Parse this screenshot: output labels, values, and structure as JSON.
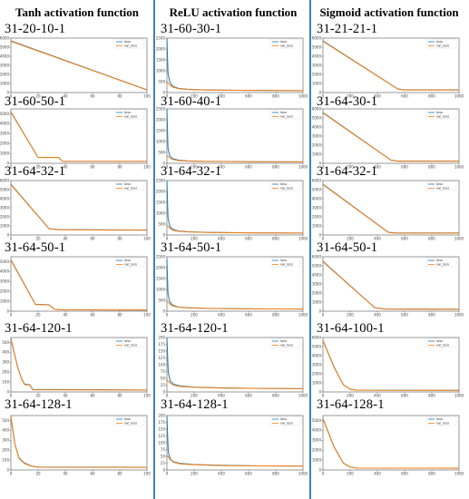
{
  "columns": [
    {
      "header": "Tanh activation function",
      "panels": [
        {
          "label": "31-20-10-1"
        },
        {
          "label": "31-60-50-1"
        },
        {
          "label": "31-64-32-1"
        },
        {
          "label": "31-64-50-1"
        },
        {
          "label": "31-64-120-1"
        },
        {
          "label": "31-64-128-1"
        }
      ]
    },
    {
      "header": "ReLU activation function",
      "panels": [
        {
          "label": "31-60-30-1"
        },
        {
          "label": "31-60-40-1"
        },
        {
          "label": "31-64-32-1"
        },
        {
          "label": "31-64-50-1"
        },
        {
          "label": "31-64-120-1"
        },
        {
          "label": "31-64-128-1"
        }
      ]
    },
    {
      "header": "Sigmoid activation function",
      "panels": [
        {
          "label": "31-21-21-1"
        },
        {
          "label": "31-64-30-1"
        },
        {
          "label": "31-64-32-1"
        },
        {
          "label": "31-64-50-1"
        },
        {
          "label": "31-64-100-1"
        },
        {
          "label": "31-64-128-1"
        }
      ]
    }
  ],
  "colors": {
    "loss": "#1f77b4",
    "val_loss": "#ff7f0e",
    "separator": "#3f7fc8"
  },
  "chart_data": [
    {
      "type": "line",
      "xlim": [
        0,
        100
      ],
      "ylim": [
        0,
        6000
      ],
      "xticks": [
        0,
        20,
        40,
        60,
        80,
        100
      ],
      "yticks": [
        0,
        1000,
        2000,
        3000,
        4000,
        5000,
        6000
      ],
      "legend": "top-right",
      "series": [
        {
          "name": "loss",
          "x": [
            0,
            100
          ],
          "y": [
            5700,
            300
          ]
        },
        {
          "name": "val_loss",
          "x": [
            0,
            100
          ],
          "y": [
            5650,
            280
          ]
        }
      ]
    },
    {
      "type": "line",
      "xlim": [
        0,
        100
      ],
      "ylim": [
        0,
        5500
      ],
      "xticks": [
        0,
        20,
        40,
        60,
        80,
        100
      ],
      "yticks": [
        0,
        1000,
        2000,
        3000,
        4000,
        5000
      ],
      "legend": "top-right",
      "series": [
        {
          "name": "loss",
          "x": [
            0,
            20,
            35,
            38,
            42,
            100
          ],
          "y": [
            5200,
            600,
            600,
            200,
            200,
            200
          ]
        },
        {
          "name": "val_loss",
          "x": [
            0,
            20,
            35,
            38,
            42,
            100
          ],
          "y": [
            5150,
            580,
            580,
            190,
            190,
            190
          ]
        }
      ]
    },
    {
      "type": "line",
      "xlim": [
        0,
        100
      ],
      "ylim": [
        0,
        6000
      ],
      "xticks": [
        0,
        20,
        40,
        60,
        80,
        100
      ],
      "yticks": [
        0,
        1000,
        2000,
        3000,
        4000,
        5000,
        6000
      ],
      "legend": "top-right",
      "series": [
        {
          "name": "loss",
          "x": [
            0,
            28,
            35,
            100
          ],
          "y": [
            5600,
            700,
            600,
            550
          ]
        },
        {
          "name": "val_loss",
          "x": [
            0,
            28,
            35,
            100
          ],
          "y": [
            5550,
            680,
            580,
            520
          ]
        }
      ]
    },
    {
      "type": "line",
      "xlim": [
        0,
        100
      ],
      "ylim": [
        0,
        5500
      ],
      "xticks": [
        0,
        20,
        40,
        60,
        80,
        100
      ],
      "yticks": [
        0,
        1000,
        2000,
        3000,
        4000,
        5000
      ],
      "legend": "top-right",
      "series": [
        {
          "name": "loss",
          "x": [
            0,
            18,
            28,
            32,
            36,
            100
          ],
          "y": [
            5200,
            700,
            650,
            200,
            150,
            120
          ]
        },
        {
          "name": "val_loss",
          "x": [
            0,
            18,
            28,
            32,
            36,
            100
          ],
          "y": [
            5150,
            680,
            630,
            190,
            140,
            110
          ]
        }
      ]
    },
    {
      "type": "line",
      "xlim": [
        0,
        100
      ],
      "ylim": [
        0,
        550
      ],
      "xticks": [
        0,
        20,
        40,
        60,
        80,
        100
      ],
      "yticks": [
        0,
        100,
        200,
        300,
        400,
        500
      ],
      "legend": "top-right",
      "series": [
        {
          "name": "loss",
          "x": [
            0,
            5,
            8,
            10,
            14,
            16,
            100
          ],
          "y": [
            540,
            250,
            130,
            80,
            70,
            25,
            20
          ]
        },
        {
          "name": "val_loss",
          "x": [
            0,
            5,
            8,
            10,
            14,
            16,
            100
          ],
          "y": [
            530,
            245,
            125,
            75,
            68,
            22,
            18
          ]
        }
      ]
    },
    {
      "type": "line",
      "xlim": [
        0,
        100
      ],
      "ylim": [
        0,
        550
      ],
      "xticks": [
        0,
        20,
        40,
        60,
        80,
        100
      ],
      "yticks": [
        0,
        100,
        200,
        300,
        400,
        500
      ],
      "legend": "top-right",
      "series": [
        {
          "name": "loss",
          "x": [
            0,
            3,
            6,
            10,
            15,
            20,
            100
          ],
          "y": [
            540,
            260,
            120,
            70,
            40,
            30,
            28
          ]
        },
        {
          "name": "val_loss",
          "x": [
            0,
            3,
            6,
            10,
            15,
            20,
            100
          ],
          "y": [
            535,
            255,
            115,
            65,
            38,
            28,
            26
          ]
        }
      ]
    },
    {
      "type": "line",
      "xlim": [
        0,
        1000
      ],
      "ylim": [
        0,
        2500
      ],
      "xticks": [
        0,
        200,
        400,
        600,
        800,
        1000
      ],
      "yticks": [
        0,
        500,
        1000,
        1500,
        2000,
        2500
      ],
      "legend": "top-right",
      "series": [
        {
          "name": "loss",
          "x": [
            0,
            8,
            20,
            40,
            80,
            150,
            300,
            600,
            1000
          ],
          "y": [
            2500,
            900,
            500,
            300,
            200,
            150,
            120,
            100,
            90
          ]
        },
        {
          "name": "val_loss",
          "x": [
            0,
            20,
            40,
            80,
            150,
            300,
            600,
            1000
          ],
          "y": [
            500,
            350,
            260,
            180,
            140,
            115,
            100,
            90
          ]
        }
      ]
    },
    {
      "type": "line",
      "xlim": [
        0,
        1000
      ],
      "ylim": [
        0,
        2500
      ],
      "xticks": [
        0,
        200,
        400,
        600,
        800,
        1000
      ],
      "yticks": [
        0,
        500,
        1000,
        1500,
        2000,
        2500
      ],
      "legend": "top-right",
      "series": [
        {
          "name": "loss",
          "x": [
            0,
            8,
            20,
            40,
            80,
            150,
            300,
            600,
            1000
          ],
          "y": [
            2500,
            700,
            350,
            220,
            150,
            110,
            90,
            75,
            70
          ]
        },
        {
          "name": "val_loss",
          "x": [
            0,
            20,
            40,
            80,
            150,
            300,
            600,
            1000
          ],
          "y": [
            350,
            250,
            180,
            130,
            100,
            85,
            72,
            68
          ]
        }
      ]
    },
    {
      "type": "line",
      "xlim": [
        0,
        1000
      ],
      "ylim": [
        0,
        2500
      ],
      "xticks": [
        0,
        200,
        400,
        600,
        800,
        1000
      ],
      "yticks": [
        0,
        500,
        1000,
        1500,
        2000,
        2500
      ],
      "legend": "top-right",
      "series": [
        {
          "name": "loss",
          "x": [
            0,
            8,
            20,
            40,
            80,
            150,
            300,
            600,
            1000
          ],
          "y": [
            2500,
            800,
            420,
            270,
            190,
            150,
            120,
            100,
            90
          ]
        },
        {
          "name": "val_loss",
          "x": [
            0,
            20,
            40,
            80,
            150,
            300,
            600,
            1000
          ],
          "y": [
            450,
            320,
            230,
            170,
            140,
            115,
            100,
            90
          ]
        }
      ]
    },
    {
      "type": "line",
      "xlim": [
        0,
        1000
      ],
      "ylim": [
        0,
        2500
      ],
      "xticks": [
        0,
        200,
        400,
        600,
        800,
        1000
      ],
      "yticks": [
        0,
        500,
        1000,
        1500,
        2000,
        2500
      ],
      "legend": "top-right",
      "series": [
        {
          "name": "loss",
          "x": [
            0,
            8,
            20,
            40,
            80,
            150,
            300,
            600,
            1000
          ],
          "y": [
            2400,
            800,
            450,
            290,
            200,
            160,
            130,
            110,
            100
          ]
        },
        {
          "name": "val_loss",
          "x": [
            0,
            20,
            40,
            80,
            150,
            300,
            600,
            1000
          ],
          "y": [
            480,
            340,
            250,
            190,
            150,
            125,
            108,
            98
          ]
        }
      ]
    },
    {
      "type": "line",
      "xlim": [
        0,
        1000
      ],
      "ylim": [
        0,
        200
      ],
      "xticks": [
        0,
        200,
        400,
        600,
        800,
        1000
      ],
      "yticks": [
        0,
        25,
        50,
        75,
        100,
        125,
        150,
        175,
        200
      ],
      "legend": "top-right",
      "series": [
        {
          "name": "loss",
          "x": [
            0,
            10,
            25,
            50,
            100,
            200,
            400,
            700,
            1000
          ],
          "y": [
            200,
            70,
            40,
            28,
            22,
            18,
            15,
            13,
            12
          ]
        },
        {
          "name": "val_loss",
          "x": [
            0,
            25,
            50,
            100,
            200,
            400,
            700,
            1000
          ],
          "y": [
            45,
            32,
            25,
            20,
            17,
            14,
            13,
            12
          ]
        }
      ]
    },
    {
      "type": "line",
      "xlim": [
        0,
        1000
      ],
      "ylim": [
        0,
        200
      ],
      "xticks": [
        0,
        200,
        400,
        600,
        800,
        1000
      ],
      "yticks": [
        0,
        25,
        50,
        75,
        100,
        125,
        150,
        175,
        200
      ],
      "legend": "top-right",
      "series": [
        {
          "name": "loss",
          "x": [
            0,
            10,
            25,
            50,
            100,
            200,
            400,
            700,
            1000
          ],
          "y": [
            200,
            65,
            40,
            30,
            24,
            20,
            17,
            15,
            14
          ]
        },
        {
          "name": "val_loss",
          "x": [
            0,
            25,
            50,
            100,
            200,
            400,
            700,
            1000
          ],
          "y": [
            55,
            38,
            28,
            22,
            19,
            16,
            15,
            14
          ]
        }
      ]
    },
    {
      "type": "line",
      "xlim": [
        0,
        1000
      ],
      "ylim": [
        0,
        6000
      ],
      "xticks": [
        0,
        200,
        400,
        600,
        800,
        1000
      ],
      "yticks": [
        0,
        1000,
        2000,
        3000,
        4000,
        5000,
        6000
      ],
      "legend": "top-right",
      "series": [
        {
          "name": "loss",
          "x": [
            0,
            550,
            600,
            1000
          ],
          "y": [
            5700,
            400,
            300,
            300
          ]
        },
        {
          "name": "val_loss",
          "x": [
            0,
            550,
            600,
            1000
          ],
          "y": [
            5650,
            380,
            280,
            280
          ]
        }
      ]
    },
    {
      "type": "line",
      "xlim": [
        0,
        1000
      ],
      "ylim": [
        0,
        6000
      ],
      "xticks": [
        0,
        200,
        400,
        600,
        800,
        1000
      ],
      "yticks": [
        0,
        1000,
        2000,
        3000,
        4000,
        5000,
        6000
      ],
      "legend": "top-right",
      "series": [
        {
          "name": "loss",
          "x": [
            0,
            500,
            550,
            1000
          ],
          "y": [
            5600,
            350,
            250,
            250
          ]
        },
        {
          "name": "val_loss",
          "x": [
            0,
            500,
            550,
            1000
          ],
          "y": [
            5550,
            330,
            230,
            230
          ]
        }
      ]
    },
    {
      "type": "line",
      "xlim": [
        0,
        1000
      ],
      "ylim": [
        0,
        6000
      ],
      "xticks": [
        0,
        200,
        400,
        600,
        800,
        1000
      ],
      "yticks": [
        0,
        1000,
        2000,
        3000,
        4000,
        5000,
        6000
      ],
      "legend": "top-right",
      "series": [
        {
          "name": "loss",
          "x": [
            0,
            480,
            530,
            1000
          ],
          "y": [
            5600,
            300,
            220,
            220
          ]
        },
        {
          "name": "val_loss",
          "x": [
            0,
            480,
            530,
            1000
          ],
          "y": [
            5550,
            280,
            200,
            200
          ]
        }
      ]
    },
    {
      "type": "line",
      "xlim": [
        0,
        1000
      ],
      "ylim": [
        0,
        6000
      ],
      "xticks": [
        0,
        200,
        400,
        600,
        800,
        1000
      ],
      "yticks": [
        0,
        1000,
        2000,
        3000,
        4000,
        5000,
        6000
      ],
      "legend": "top-right",
      "series": [
        {
          "name": "loss",
          "x": [
            0,
            380,
            450,
            1000
          ],
          "y": [
            5500,
            400,
            250,
            220
          ]
        },
        {
          "name": "val_loss",
          "x": [
            0,
            380,
            450,
            1000
          ],
          "y": [
            5450,
            380,
            230,
            200
          ]
        }
      ]
    },
    {
      "type": "line",
      "xlim": [
        0,
        1000
      ],
      "ylim": [
        0,
        6000
      ],
      "xticks": [
        0,
        200,
        400,
        600,
        800,
        1000
      ],
      "yticks": [
        0,
        1000,
        2000,
        3000,
        4000,
        5000,
        6000
      ],
      "legend": "top-right",
      "series": [
        {
          "name": "loss",
          "x": [
            0,
            80,
            150,
            200,
            250,
            1000
          ],
          "y": [
            5700,
            2800,
            800,
            300,
            200,
            180
          ]
        },
        {
          "name": "val_loss",
          "x": [
            0,
            80,
            150,
            200,
            250,
            1000
          ],
          "y": [
            5650,
            2750,
            780,
            290,
            190,
            170
          ]
        }
      ]
    },
    {
      "type": "line",
      "xlim": [
        0,
        1000
      ],
      "ylim": [
        0,
        5500
      ],
      "xticks": [
        0,
        200,
        400,
        600,
        800,
        1000
      ],
      "yticks": [
        0,
        1000,
        2000,
        3000,
        4000,
        5000
      ],
      "legend": "top-right",
      "series": [
        {
          "name": "loss",
          "x": [
            0,
            80,
            150,
            200,
            250,
            1000
          ],
          "y": [
            5200,
            2400,
            700,
            300,
            200,
            180
          ]
        },
        {
          "name": "val_loss",
          "x": [
            0,
            80,
            150,
            200,
            250,
            1000
          ],
          "y": [
            5150,
            2350,
            680,
            290,
            190,
            170
          ]
        }
      ]
    }
  ]
}
